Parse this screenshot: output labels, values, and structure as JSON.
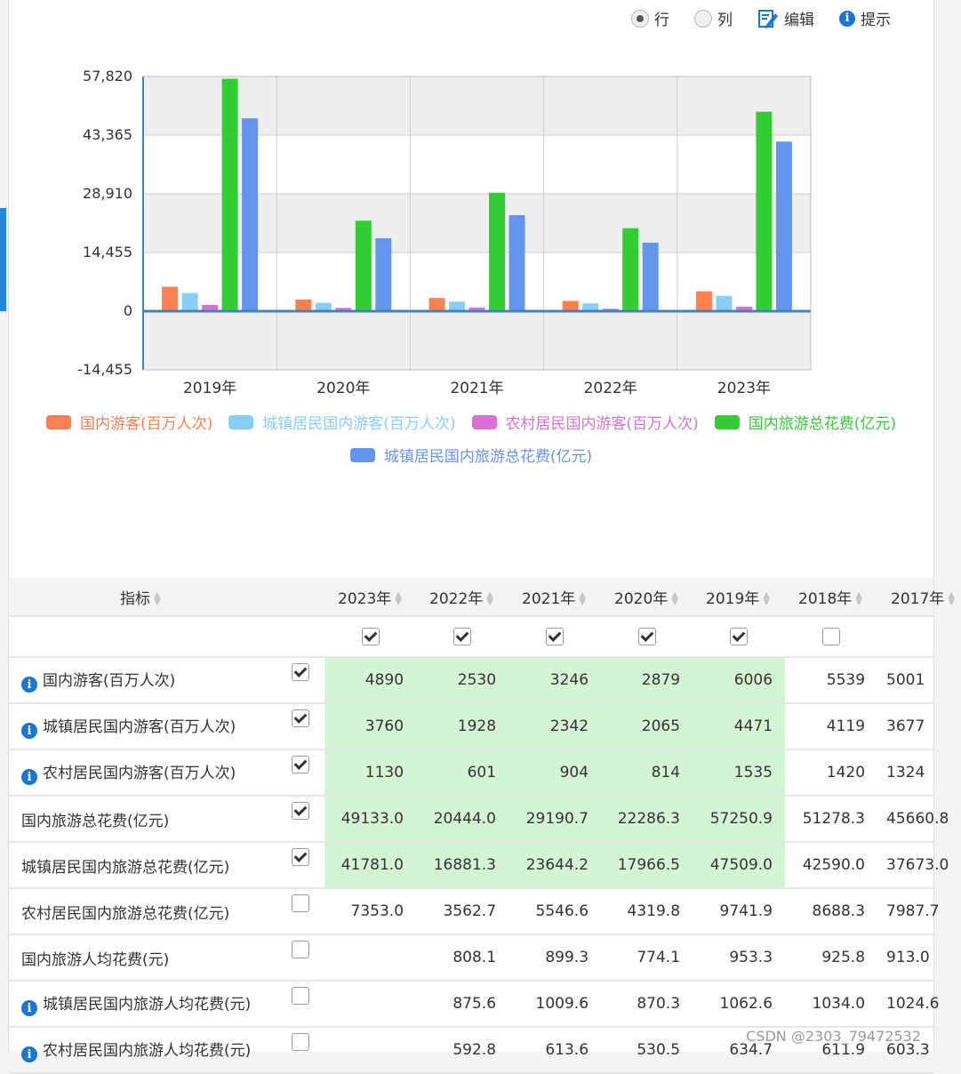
{
  "toolbar": {
    "row_label": "行",
    "col_label": "列",
    "edit_label": "编辑",
    "hint_label": "提示"
  },
  "chart_data": {
    "type": "bar",
    "categories": [
      "2019年",
      "2020年",
      "2021年",
      "2022年",
      "2023年"
    ],
    "series": [
      {
        "name": "国内游客(百万人次)",
        "color": "#ff7f50",
        "values": [
          6006,
          2879,
          3246,
          2530,
          4890
        ]
      },
      {
        "name": "城镇居民国内游客(百万人次)",
        "color": "#87cefa",
        "values": [
          4471,
          2065,
          2342,
          1928,
          3760
        ]
      },
      {
        "name": "农村居民国内游客(百万人次)",
        "color": "#da70d6",
        "values": [
          1535,
          814,
          904,
          601,
          1130
        ]
      },
      {
        "name": "国内旅游总花费(亿元)",
        "color": "#32cd32",
        "values": [
          57250.9,
          22286.3,
          29190.7,
          20444.0,
          49133.0
        ]
      },
      {
        "name": "城镇居民国内旅游总花费(亿元)",
        "color": "#6495ed",
        "values": [
          47509.0,
          17966.5,
          23644.2,
          16881.3,
          41781.0
        ]
      }
    ],
    "yticks": [
      "57,820",
      "43,365",
      "28,910",
      "14,455",
      "0",
      "-14,455"
    ],
    "ylim": [
      -14455,
      57820
    ],
    "grid": true,
    "legend": "bottom"
  },
  "table": {
    "header_label": "指标",
    "years": [
      "2023年",
      "2022年",
      "2021年",
      "2020年",
      "2019年",
      "2018年",
      "2017年"
    ],
    "year_checked": [
      true,
      true,
      true,
      true,
      true,
      false,
      false
    ],
    "rows": [
      {
        "label": "国内游客(百万人次)",
        "info": true,
        "checked": true,
        "values": [
          "4890",
          "2530",
          "3246",
          "2879",
          "6006",
          "5539",
          "5001"
        ]
      },
      {
        "label": "城镇居民国内游客(百万人次)",
        "info": true,
        "checked": true,
        "values": [
          "3760",
          "1928",
          "2342",
          "2065",
          "4471",
          "4119",
          "3677"
        ]
      },
      {
        "label": "农村居民国内游客(百万人次)",
        "info": true,
        "checked": true,
        "values": [
          "1130",
          "601",
          "904",
          "814",
          "1535",
          "1420",
          "1324"
        ]
      },
      {
        "label": "国内旅游总花费(亿元)",
        "info": false,
        "checked": true,
        "values": [
          "49133.0",
          "20444.0",
          "29190.7",
          "22286.3",
          "57250.9",
          "51278.3",
          "45660.8"
        ]
      },
      {
        "label": "城镇居民国内旅游总花费(亿元)",
        "info": false,
        "checked": true,
        "values": [
          "41781.0",
          "16881.3",
          "23644.2",
          "17966.5",
          "47509.0",
          "42590.0",
          "37673.0"
        ]
      },
      {
        "label": "农村居民国内旅游总花费(亿元)",
        "info": false,
        "checked": false,
        "values": [
          "7353.0",
          "3562.7",
          "5546.6",
          "4319.8",
          "9741.9",
          "8688.3",
          "7987.7"
        ]
      },
      {
        "label": "国内旅游人均花费(元)",
        "info": false,
        "checked": false,
        "values": [
          "",
          "808.1",
          "899.3",
          "774.1",
          "953.3",
          "925.8",
          "913.0"
        ]
      },
      {
        "label": "城镇居民国内旅游人均花费(元)",
        "info": true,
        "checked": false,
        "values": [
          "",
          "875.6",
          "1009.6",
          "870.3",
          "1062.6",
          "1034.0",
          "1024.6"
        ]
      },
      {
        "label": "农村居民国内旅游人均花费(元)",
        "info": true,
        "checked": false,
        "values": [
          "",
          "592.8",
          "613.6",
          "530.5",
          "634.7",
          "611.9",
          "603.3"
        ]
      }
    ]
  },
  "watermark": "CSDN @2303_79472532"
}
